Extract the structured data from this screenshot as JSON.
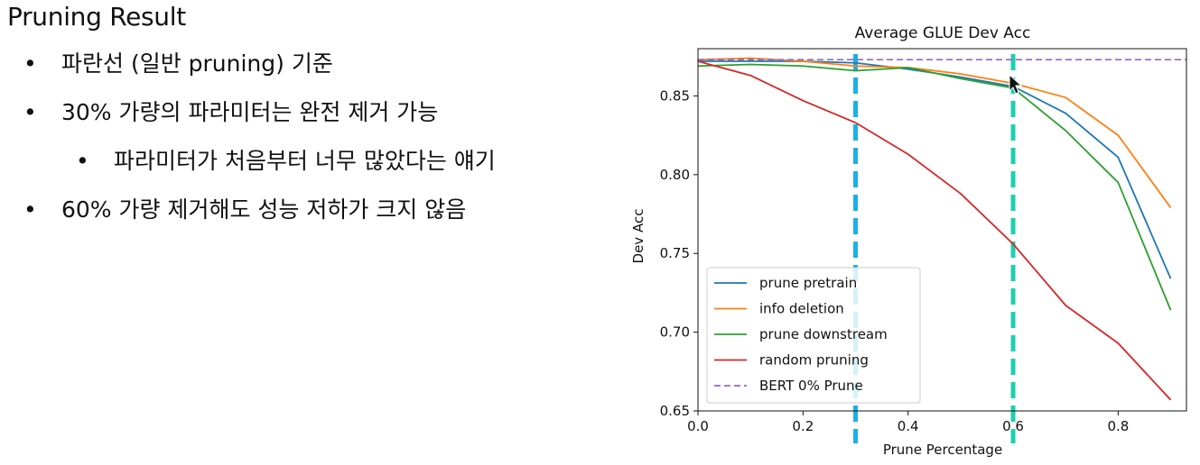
{
  "slide": {
    "title": "Pruning Result",
    "bullets": [
      {
        "level": 1,
        "text": "파란선 (일반 pruning) 기준"
      },
      {
        "level": 1,
        "text": "30% 가량의 파라미터는 완전 제거 가능"
      },
      {
        "level": 2,
        "text": "파라미터가 처음부터 너무 많았다는 얘기"
      },
      {
        "level": 1,
        "text": "60% 가량 제거해도 성능 저하가 크지 않음"
      }
    ]
  },
  "chart_data": {
    "type": "line",
    "title": "Average GLUE Dev Acc",
    "xlabel": "Prune Percentage",
    "ylabel": "Dev Acc",
    "xlim": [
      0.0,
      0.93
    ],
    "ylim": [
      0.65,
      0.88
    ],
    "xticks": [
      0.0,
      0.2,
      0.4,
      0.6,
      0.8
    ],
    "xtick_labels": [
      "0.0",
      "0.2",
      "0.4",
      "0.6",
      "0.8"
    ],
    "yticks": [
      0.65,
      0.7,
      0.75,
      0.8,
      0.85
    ],
    "ytick_labels": [
      "0.65",
      "0.70",
      "0.75",
      "0.80",
      "0.85"
    ],
    "grid": false,
    "legend_position": "lower-left",
    "x": [
      0.0,
      0.1,
      0.2,
      0.3,
      0.4,
      0.5,
      0.6,
      0.7,
      0.8,
      0.9
    ],
    "series": [
      {
        "name": "prune pretrain",
        "color": "#1f77b4",
        "style": "solid",
        "values": [
          0.872,
          0.872,
          0.872,
          0.871,
          0.867,
          0.862,
          0.856,
          0.839,
          0.811,
          0.734
        ]
      },
      {
        "name": "info deletion",
        "color": "#ff7f0e",
        "style": "solid",
        "values": [
          0.873,
          0.874,
          0.872,
          0.869,
          0.868,
          0.864,
          0.858,
          0.849,
          0.825,
          0.779
        ]
      },
      {
        "name": "prune downstream",
        "color": "#2ca02c",
        "style": "solid",
        "values": [
          0.869,
          0.87,
          0.869,
          0.866,
          0.868,
          0.861,
          0.855,
          0.828,
          0.795,
          0.714
        ]
      },
      {
        "name": "random pruning",
        "color": "#d62728",
        "style": "solid",
        "values": [
          0.872,
          0.863,
          0.847,
          0.833,
          0.813,
          0.788,
          0.756,
          0.717,
          0.693,
          0.657
        ]
      },
      {
        "name": "BERT 0% Prune",
        "color": "#9467bd",
        "style": "dashed",
        "hline": 0.873
      }
    ],
    "annotations": [
      {
        "kind": "vline",
        "x": 0.3,
        "color": "#1ab0e6"
      },
      {
        "kind": "vline",
        "x": 0.6,
        "color": "#1fcfb0"
      }
    ]
  }
}
